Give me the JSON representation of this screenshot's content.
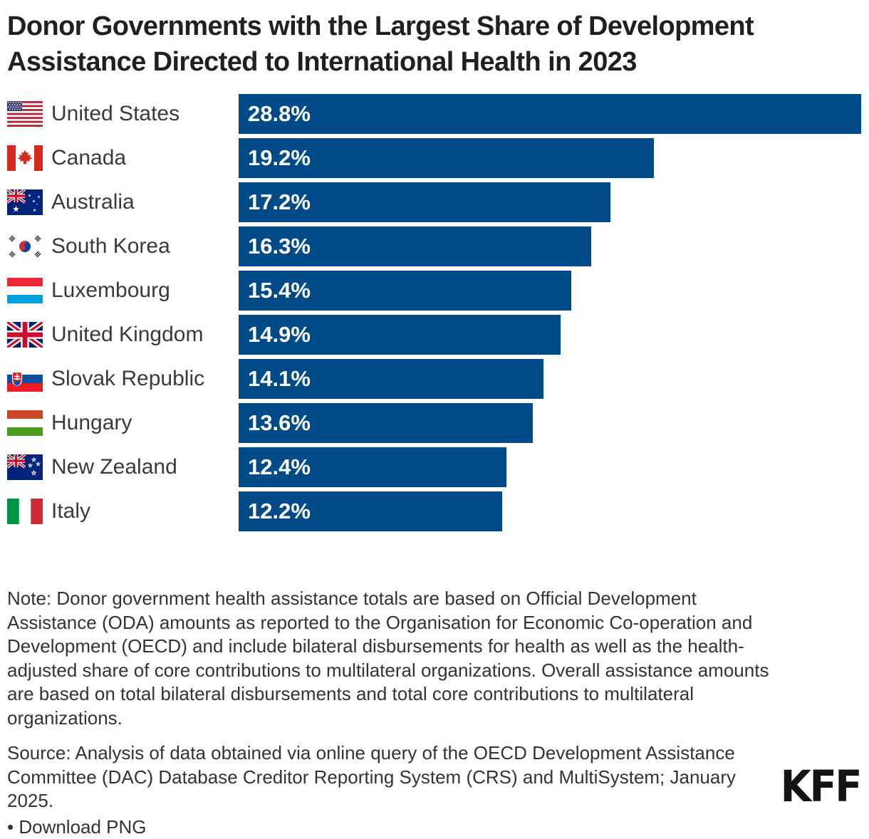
{
  "title": "Donor Governments with the Largest Share of Development Assistance Directed to International Health in 2023",
  "chart_data": {
    "type": "bar",
    "orientation": "horizontal",
    "title": "Donor Governments with the Largest Share of Development Assistance Directed to International Health in 2023",
    "xlim": [
      0,
      28.8
    ],
    "grid": false,
    "legend": "none",
    "bar_color": "#004b87",
    "value_label_color": "#ffffff",
    "category_label_color": "#3a3a3a",
    "categories": [
      "United States",
      "Canada",
      "Australia",
      "South Korea",
      "Luxembourg",
      "United Kingdom",
      "Slovak Republic",
      "Hungary",
      "New Zealand",
      "Italy"
    ],
    "values": [
      28.8,
      19.2,
      17.2,
      16.3,
      15.4,
      14.9,
      14.1,
      13.6,
      12.4,
      12.2
    ],
    "value_labels": [
      "28.8%",
      "19.2%",
      "17.2%",
      "16.3%",
      "15.4%",
      "14.9%",
      "14.1%",
      "13.6%",
      "12.4%",
      "12.2%"
    ],
    "flag_ids": [
      "united-states",
      "canada",
      "australia",
      "south-korea",
      "luxembourg",
      "united-kingdom",
      "slovak-republic",
      "hungary",
      "new-zealand",
      "italy"
    ]
  },
  "note": "Note: Donor government health assistance totals are based on Official Development Assistance (ODA) amounts as reported to the Organisation for Economic Co-operation and Development (OECD) and include bilateral disbursements for health as well as the health-adjusted share of core contributions to multilateral organizations. Overall assistance amounts are based on total bilateral disbursements and total core contributions to multilateral organizations.",
  "source": "Source: Analysis of data obtained via online query of the OECD Development Assistance Committee (DAC) Database Creditor Reporting System (CRS) and MultiSystem; January 2025.",
  "download_label": "• Download PNG",
  "logo": {
    "text": "KFF"
  }
}
